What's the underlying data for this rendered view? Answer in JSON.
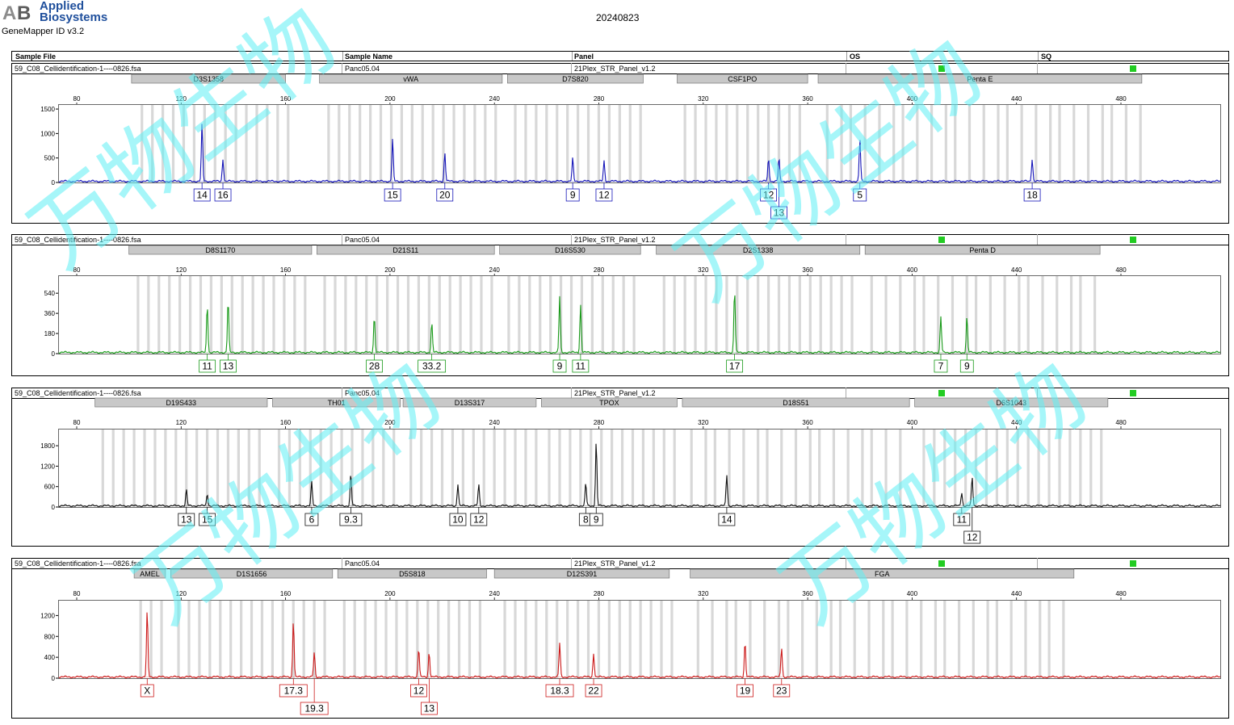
{
  "header": {
    "brand_line1": "Applied",
    "brand_line2": "Biosystems",
    "logo_letters": "AB",
    "software": "GeneMapper ID v3.2",
    "date": "20240823",
    "watermark_text": "万物生物"
  },
  "table_header": {
    "sample_file": "Sample File",
    "sample_name": "Sample Name",
    "panel": "Panel",
    "os": "OS",
    "sq": "SQ"
  },
  "colors": {
    "blue": "#1515b8",
    "green": "#1a9a1a",
    "black": "#111111",
    "red": "#cc1a1a",
    "status": "#22cc22",
    "bin": "#d8d8d8",
    "marker": "#c8c8c8"
  },
  "chart_data": [
    {
      "type": "line",
      "dye": "blue",
      "sample_file": "59_C08_Cellidentification-1----0826.fsa",
      "sample_name": "Panc05.04",
      "panel": "21Plex_STR_Panel_v1.2",
      "xlim": [
        80,
        500
      ],
      "x_ticks": [
        80,
        120,
        160,
        200,
        240,
        280,
        320,
        360,
        400,
        440,
        480
      ],
      "ylim": [
        0,
        1600
      ],
      "y_ticks": [
        0,
        500,
        1000,
        1500
      ],
      "markers": [
        {
          "name": "D3S1358",
          "start": 101,
          "end": 160
        },
        {
          "name": "vWA",
          "start": 173,
          "end": 243
        },
        {
          "name": "D7S820",
          "start": 245,
          "end": 297
        },
        {
          "name": "CSF1PO",
          "start": 310,
          "end": 360
        },
        {
          "name": "Penta E",
          "start": 364,
          "end": 488
        }
      ],
      "peaks": [
        {
          "x": 128,
          "height": 1170,
          "label": "14"
        },
        {
          "x": 136,
          "height": 460,
          "label": "16"
        },
        {
          "x": 201,
          "height": 860,
          "label": "15"
        },
        {
          "x": 221,
          "height": 590,
          "label": "20"
        },
        {
          "x": 270,
          "height": 470,
          "label": "9"
        },
        {
          "x": 282,
          "height": 420,
          "label": "12"
        },
        {
          "x": 345,
          "height": 470,
          "label": "12"
        },
        {
          "x": 349,
          "height": 470,
          "label": "13",
          "stacked": true
        },
        {
          "x": 380,
          "height": 870,
          "label": "5"
        },
        {
          "x": 446,
          "height": 460,
          "label": "18"
        }
      ]
    },
    {
      "type": "line",
      "dye": "green",
      "sample_file": "59_C08_Cellidentification-1----0826.fsa",
      "sample_name": "Panc05.04",
      "panel": "21Plex_STR_Panel_v1.2",
      "xlim": [
        80,
        500
      ],
      "x_ticks": [
        80,
        120,
        160,
        200,
        240,
        280,
        320,
        360,
        400,
        440,
        480
      ],
      "ylim": [
        0,
        700
      ],
      "y_ticks": [
        0,
        180,
        360,
        540
      ],
      "markers": [
        {
          "name": "D8S1170",
          "start": 100,
          "end": 170
        },
        {
          "name": "D21S11",
          "start": 172,
          "end": 240
        },
        {
          "name": "D16S530",
          "start": 242,
          "end": 296
        },
        {
          "name": "D2S1338",
          "start": 302,
          "end": 380
        },
        {
          "name": "Penta D",
          "start": 382,
          "end": 472
        }
      ],
      "peaks": [
        {
          "x": 130,
          "height": 430,
          "label": "11"
        },
        {
          "x": 138,
          "height": 470,
          "label": "13"
        },
        {
          "x": 194,
          "height": 330,
          "label": "28"
        },
        {
          "x": 216,
          "height": 270,
          "label": "33.2"
        },
        {
          "x": 265,
          "height": 500,
          "label": "9"
        },
        {
          "x": 273,
          "height": 430,
          "label": "11"
        },
        {
          "x": 332,
          "height": 570,
          "label": "17"
        },
        {
          "x": 411,
          "height": 320,
          "label": "7"
        },
        {
          "x": 421,
          "height": 320,
          "label": "9"
        }
      ]
    },
    {
      "type": "line",
      "dye": "black",
      "sample_file": "59_C08_Cellidentification-1----0826.fsa",
      "sample_name": "Panc05.04",
      "panel": "21Plex_STR_Panel_v1.2",
      "xlim": [
        80,
        500
      ],
      "x_ticks": [
        80,
        120,
        160,
        200,
        240,
        280,
        320,
        360,
        400,
        440,
        480
      ],
      "ylim": [
        0,
        2300
      ],
      "y_ticks": [
        0,
        600,
        1200,
        1800
      ],
      "markers": [
        {
          "name": "D19S433",
          "start": 87,
          "end": 153
        },
        {
          "name": "TH01",
          "start": 155,
          "end": 204
        },
        {
          "name": "D13S317",
          "start": 205,
          "end": 256
        },
        {
          "name": "TPOX",
          "start": 258,
          "end": 310
        },
        {
          "name": "D18S51",
          "start": 312,
          "end": 399
        },
        {
          "name": "D6S1043",
          "start": 401,
          "end": 475
        }
      ],
      "peaks": [
        {
          "x": 122,
          "height": 470,
          "label": "13"
        },
        {
          "x": 130,
          "height": 360,
          "label": "15"
        },
        {
          "x": 170,
          "height": 700,
          "label": "6"
        },
        {
          "x": 185,
          "height": 960,
          "label": "9.3"
        },
        {
          "x": 226,
          "height": 650,
          "label": "10"
        },
        {
          "x": 234,
          "height": 620,
          "label": "12"
        },
        {
          "x": 275,
          "height": 670,
          "label": "8"
        },
        {
          "x": 279,
          "height": 1900,
          "label": "9"
        },
        {
          "x": 329,
          "height": 920,
          "label": "14"
        },
        {
          "x": 419,
          "height": 400,
          "label": "11"
        },
        {
          "x": 423,
          "height": 850,
          "label": "12",
          "stacked": true
        }
      ]
    },
    {
      "type": "line",
      "dye": "red",
      "sample_file": "59_C08_Cellidentification-1----0826.fsa",
      "sample_name": "Panc05.04",
      "panel": "21Plex_STR_Panel_v1.2",
      "xlim": [
        80,
        500
      ],
      "x_ticks": [
        80,
        120,
        160,
        200,
        240,
        280,
        320,
        360,
        400,
        440,
        480
      ],
      "ylim": [
        0,
        1500
      ],
      "y_ticks": [
        0,
        400,
        800,
        1200
      ],
      "markers": [
        {
          "name": "AMEL",
          "start": 102,
          "end": 114
        },
        {
          "name": "D1S1656",
          "start": 116,
          "end": 178
        },
        {
          "name": "D5S818",
          "start": 180,
          "end": 237
        },
        {
          "name": "D12S391",
          "start": 240,
          "end": 307
        },
        {
          "name": "FGA",
          "start": 315,
          "end": 462
        }
      ],
      "peaks": [
        {
          "x": 107,
          "height": 1280,
          "label": "X"
        },
        {
          "x": 163,
          "height": 1100,
          "label": "17.3"
        },
        {
          "x": 171,
          "height": 470,
          "label": "19.3",
          "stacked": true
        },
        {
          "x": 211,
          "height": 560,
          "label": "12"
        },
        {
          "x": 215,
          "height": 490,
          "label": "13",
          "stacked": true
        },
        {
          "x": 265,
          "height": 650,
          "label": "18.3"
        },
        {
          "x": 278,
          "height": 460,
          "label": "22"
        },
        {
          "x": 336,
          "height": 690,
          "label": "19"
        },
        {
          "x": 350,
          "height": 570,
          "label": "23"
        }
      ]
    }
  ]
}
